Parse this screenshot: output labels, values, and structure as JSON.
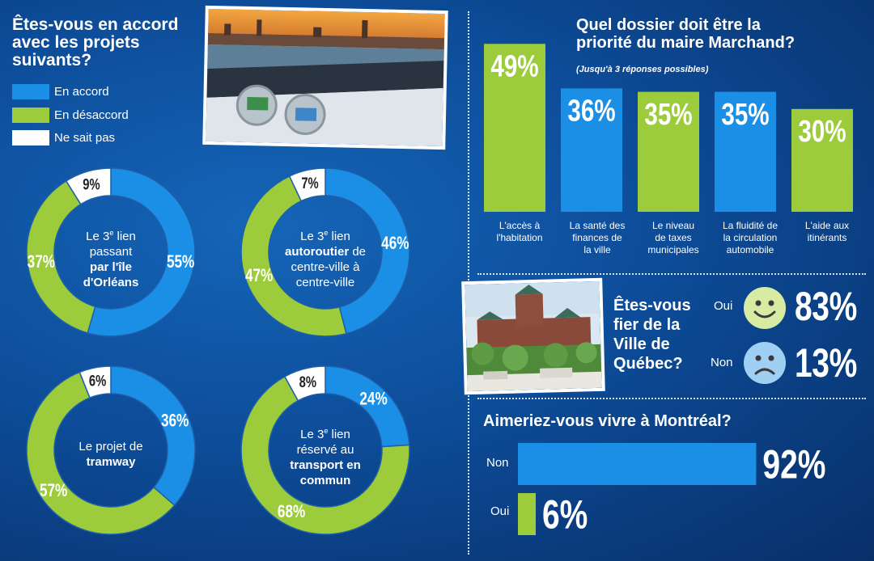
{
  "left": {
    "question": [
      "Êtes-vous en accord",
      "avec les projets",
      "suivants?"
    ],
    "legend": [
      {
        "label": "En accord",
        "color": "#1b8ee6"
      },
      {
        "label": "En désaccord",
        "color": "#9ccb3b"
      },
      {
        "label": "Ne sait pas",
        "color": "#ffffff"
      }
    ]
  },
  "chart_data": [
    {
      "type": "pie",
      "title": "Le 3e lien passant par l'île d'Orléans",
      "labels": [
        "En accord",
        "En désaccord",
        "Ne sait pas"
      ],
      "values": [
        55,
        37,
        9
      ],
      "value_labels": [
        "55%",
        "37%",
        "9%"
      ]
    },
    {
      "type": "pie",
      "title": "Le 3e lien autoroutier de centre-ville à centre-ville",
      "labels": [
        "En accord",
        "En désaccord",
        "Ne sait pas"
      ],
      "values": [
        46,
        47,
        7
      ],
      "value_labels": [
        "46%",
        "47%",
        "7%"
      ]
    },
    {
      "type": "pie",
      "title": "Le projet de tramway",
      "labels": [
        "En accord",
        "En désaccord",
        "Ne sait pas"
      ],
      "values": [
        36,
        57,
        6
      ],
      "value_labels": [
        "36%",
        "57%",
        "6%"
      ]
    },
    {
      "type": "pie",
      "title": "Le 3e lien réservé au transport en commun",
      "labels": [
        "En accord",
        "En désaccord",
        "Ne sait pas"
      ],
      "values": [
        24,
        68,
        8
      ],
      "value_labels": [
        "24%",
        "68%",
        "8%"
      ]
    },
    {
      "type": "bar",
      "title": "Quel dossier doit être la priorité du maire Marchand?",
      "subtitle": "(Jusqu'à 3 réponses possibles)",
      "categories": [
        "L'accès à l'habitation",
        "La santé des finances de la ville",
        "Le niveau de taxes municipales",
        "La fluidité de la circulation automobile",
        "L'aide aux itinérants"
      ],
      "values": [
        49,
        36,
        35,
        35,
        30
      ],
      "value_labels": [
        "49%",
        "36%",
        "35%",
        "35%",
        "30%"
      ],
      "colors": [
        "#9ccb3b",
        "#1b8ee6",
        "#9ccb3b",
        "#1b8ee6",
        "#9ccb3b"
      ]
    },
    {
      "type": "bar",
      "title": "Aimeriez-vous vivre à Montréal?",
      "categories": [
        "Non",
        "Oui"
      ],
      "values": [
        92,
        6
      ],
      "value_labels": [
        "92%",
        "6%"
      ],
      "colors": [
        "#1b8ee6",
        "#9ccb3b"
      ]
    }
  ],
  "donut_texts": [
    {
      "lines": [
        [
          "Le 3",
          "e",
          " lien"
        ],
        [
          "passant"
        ],
        [
          "par l'île",
          null,
          null,
          true
        ],
        [
          "d'Orléans",
          null,
          null,
          true
        ]
      ]
    },
    {
      "lines": [
        [
          "Le 3",
          "e",
          " lien"
        ],
        [
          "autoroutier",
          null,
          " de",
          true
        ],
        [
          "centre-ville à"
        ],
        [
          "centre-ville"
        ]
      ]
    },
    {
      "lines": [
        [
          "Le projet de"
        ],
        [
          "tramway",
          null,
          null,
          true
        ]
      ]
    },
    {
      "lines": [
        [
          "Le 3",
          "e",
          " lien"
        ],
        [
          "réservé au"
        ],
        [
          "transport en",
          null,
          null,
          true
        ],
        [
          "commun",
          null,
          null,
          true
        ]
      ]
    }
  ],
  "priority": {
    "title": [
      "Quel dossier doit être la",
      "priorité du maire Marchand?"
    ],
    "subtitle": "(Jusqu'à 3 réponses possibles)",
    "category_lines": [
      [
        "L'accès à",
        "l'habitation"
      ],
      [
        "La santé des",
        "finances de",
        "la ville"
      ],
      [
        "Le niveau",
        "de taxes",
        "municipales"
      ],
      [
        "La fluidité de",
        "la circulation",
        "automobile"
      ],
      [
        "L'aide aux",
        "itinérants"
      ]
    ]
  },
  "pride": {
    "question": [
      "Êtes-vous",
      "fier de la",
      "Ville de",
      "Québec?"
    ],
    "yes_label": "Oui",
    "yes_value": "83%",
    "no_label": "Non",
    "no_value": "13%"
  },
  "montreal": {
    "title": "Aimeriez-vous vivre à Montréal?",
    "no_label": "Non",
    "yes_label": "Oui"
  },
  "colors": {
    "accord": "#1b8ee6",
    "desaccord": "#9ccb3b",
    "nsp": "#ffffff"
  }
}
